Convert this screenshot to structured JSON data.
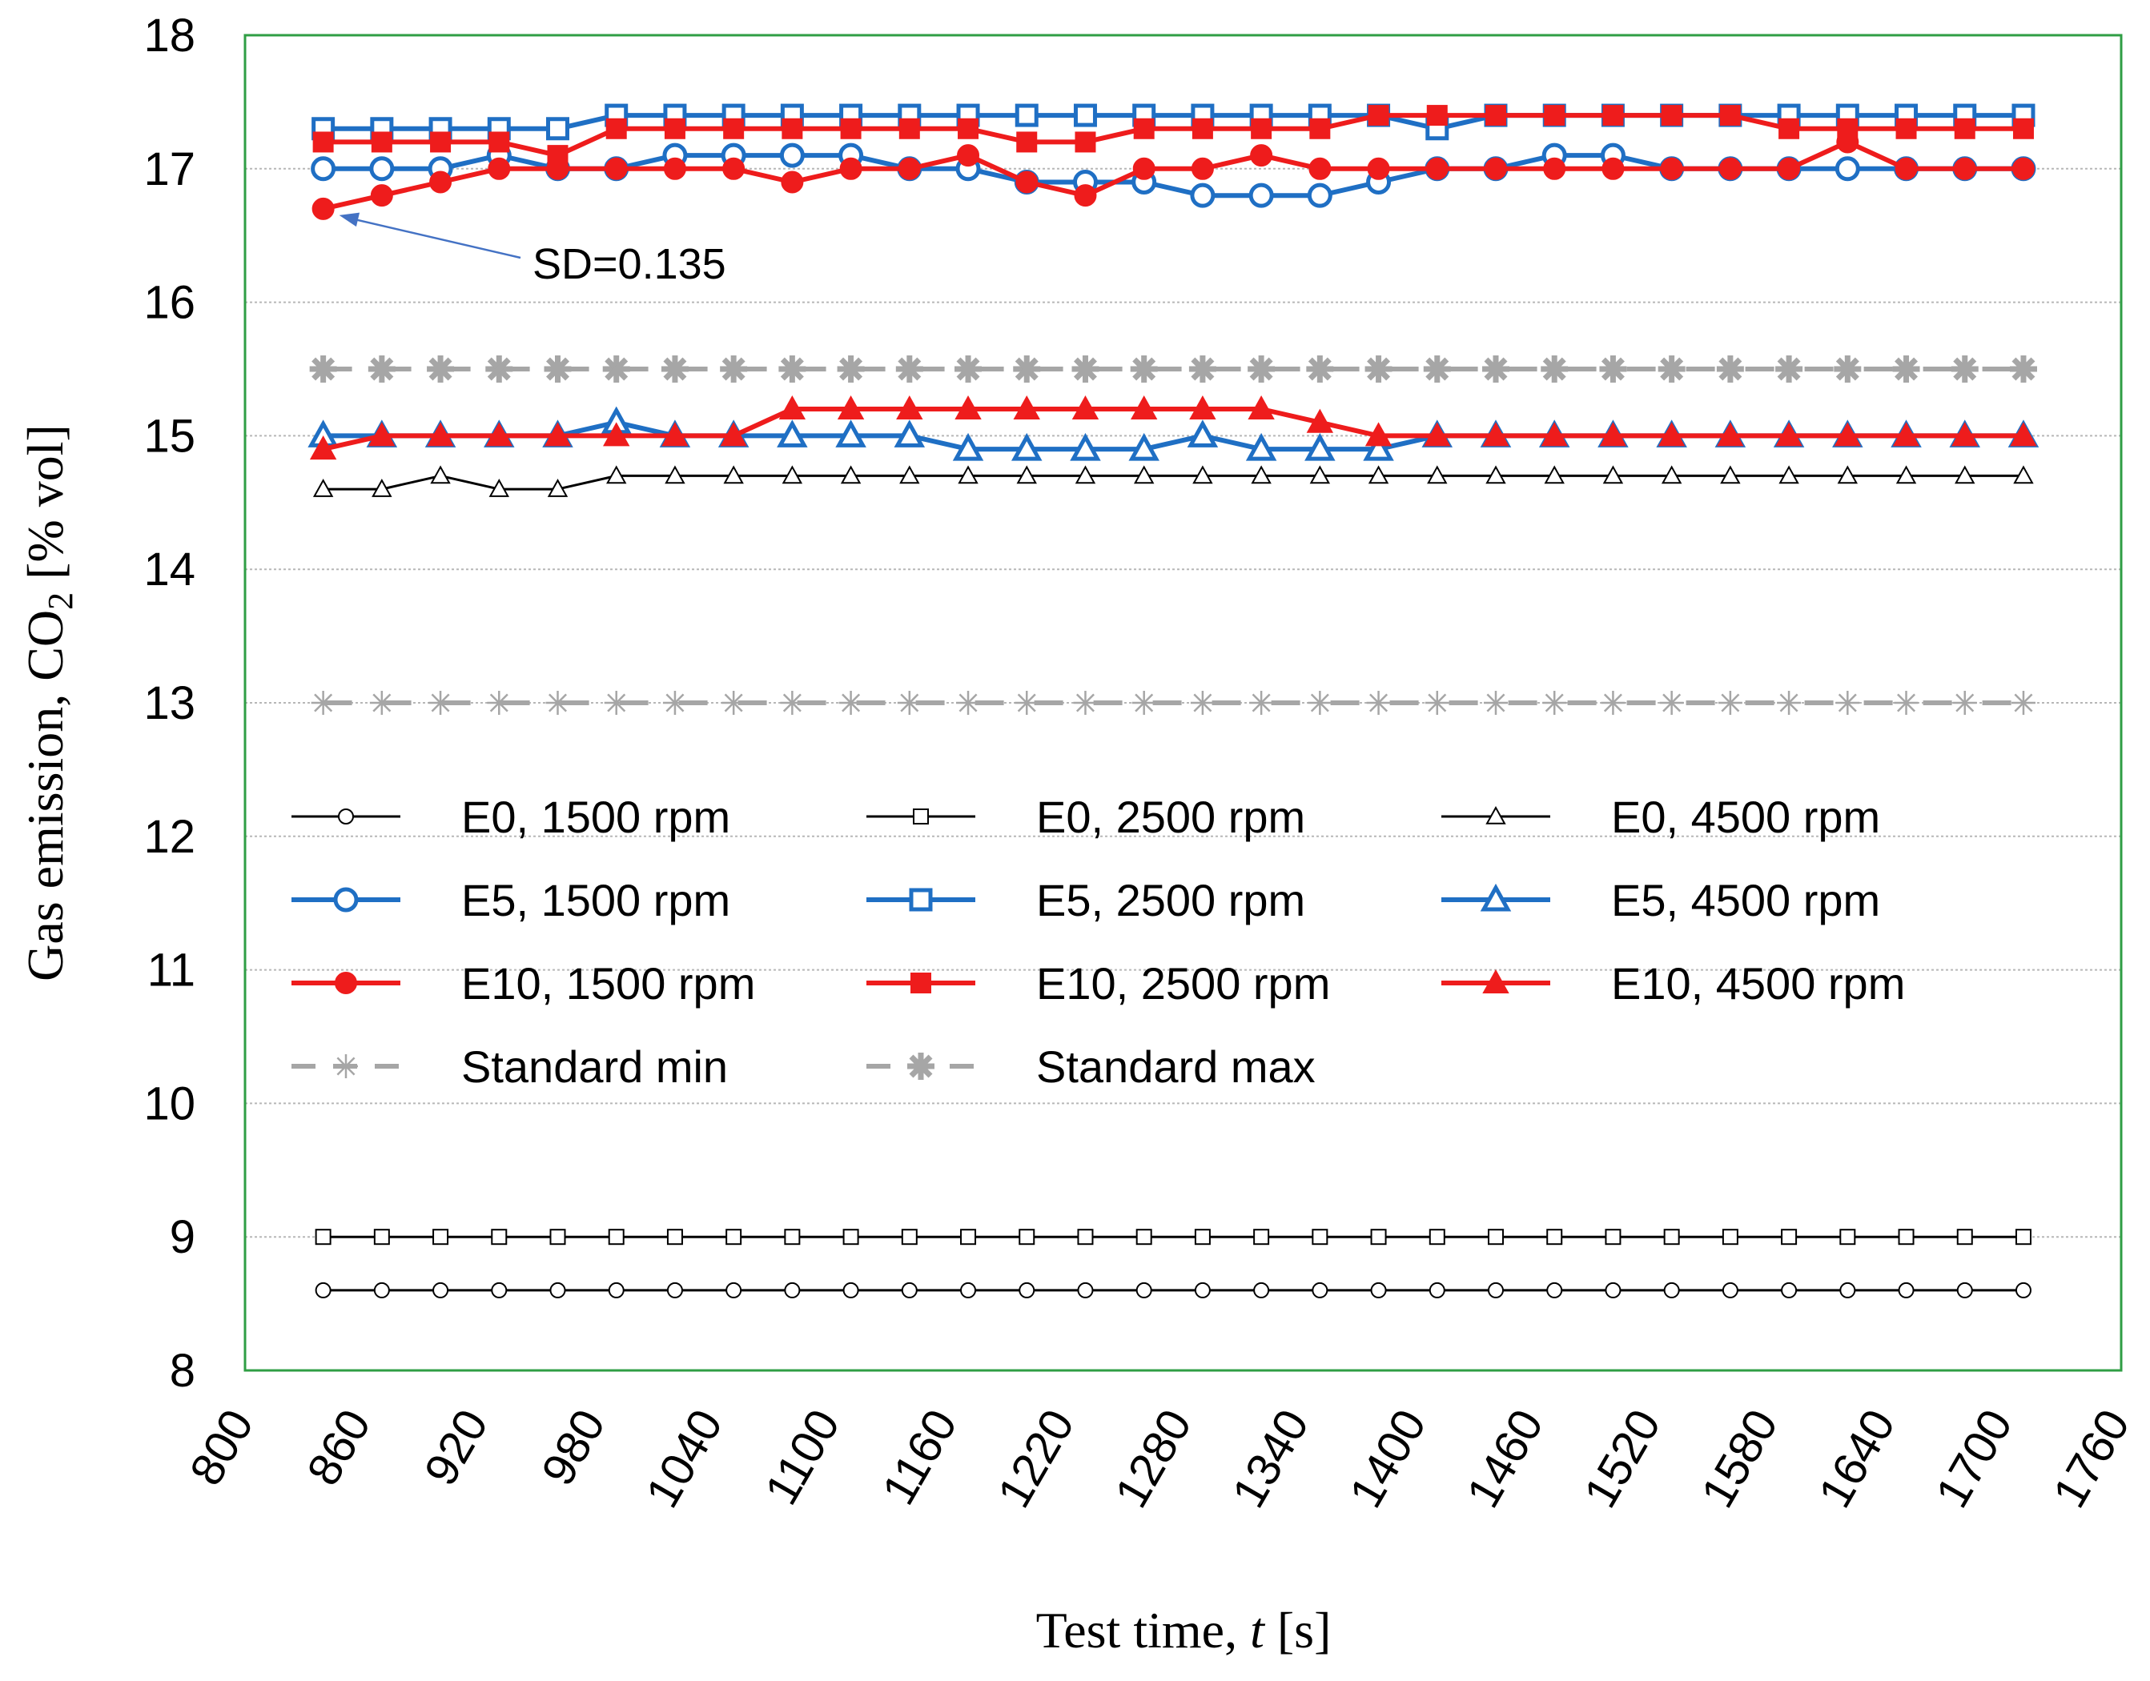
{
  "chart_data": {
    "type": "line",
    "title": "",
    "xlabel_prefix": "Test time, ",
    "xlabel_var": "t",
    "xlabel_suffix": " [s]",
    "ylabel_prefix": "Gas emission, CO",
    "ylabel_sub": "2",
    "ylabel_suffix": " [% vol]",
    "xlim": [
      800,
      1760
    ],
    "ylim": [
      8,
      18
    ],
    "xticks": [
      800,
      860,
      920,
      980,
      1040,
      1100,
      1160,
      1220,
      1280,
      1340,
      1400,
      1460,
      1520,
      1580,
      1640,
      1700,
      1760
    ],
    "yticks": [
      8,
      9,
      10,
      11,
      12,
      13,
      14,
      15,
      16,
      17,
      18
    ],
    "x": [
      840,
      870,
      900,
      930,
      960,
      990,
      1020,
      1050,
      1080,
      1110,
      1140,
      1170,
      1200,
      1230,
      1260,
      1290,
      1320,
      1350,
      1380,
      1410,
      1440,
      1470,
      1500,
      1530,
      1560,
      1590,
      1620,
      1650,
      1680,
      1710
    ],
    "grid": true,
    "annotation": {
      "text": "SD=0.135",
      "target_x": 840,
      "target_y": 16.7,
      "color": "#4472c4"
    },
    "series": [
      {
        "name": "E0, 1500 rpm",
        "color": "#000000",
        "marker": "circle-open",
        "width": 3,
        "values": [
          8.6,
          8.6,
          8.6,
          8.6,
          8.6,
          8.6,
          8.6,
          8.6,
          8.6,
          8.6,
          8.6,
          8.6,
          8.6,
          8.6,
          8.6,
          8.6,
          8.6,
          8.6,
          8.6,
          8.6,
          8.6,
          8.6,
          8.6,
          8.6,
          8.6,
          8.6,
          8.6,
          8.6,
          8.6,
          8.6
        ]
      },
      {
        "name": "E0, 2500 rpm",
        "color": "#000000",
        "marker": "square-open",
        "width": 3,
        "values": [
          9,
          9,
          9,
          9,
          9,
          9,
          9,
          9,
          9,
          9,
          9,
          9,
          9,
          9,
          9,
          9,
          9,
          9,
          9,
          9,
          9,
          9,
          9,
          9,
          9,
          9,
          9,
          9,
          9,
          9
        ]
      },
      {
        "name": "E0, 4500 rpm",
        "color": "#000000",
        "marker": "triangle-open",
        "width": 3,
        "values": [
          14.6,
          14.6,
          14.7,
          14.6,
          14.6,
          14.7,
          14.7,
          14.7,
          14.7,
          14.7,
          14.7,
          14.7,
          14.7,
          14.7,
          14.7,
          14.7,
          14.7,
          14.7,
          14.7,
          14.7,
          14.7,
          14.7,
          14.7,
          14.7,
          14.7,
          14.7,
          14.7,
          14.7,
          14.7,
          14.7
        ]
      },
      {
        "name": "E5, 1500 rpm",
        "color": "#1f6fc4",
        "marker": "circle-open-bold",
        "width": 6,
        "values": [
          17,
          17,
          17,
          17.1,
          17,
          17,
          17.1,
          17.1,
          17.1,
          17.1,
          17,
          17,
          16.9,
          16.9,
          16.9,
          16.8,
          16.8,
          16.8,
          16.9,
          17,
          17,
          17.1,
          17.1,
          17,
          17,
          17,
          17,
          17,
          17,
          17
        ]
      },
      {
        "name": "E5, 2500 rpm",
        "color": "#1f6fc4",
        "marker": "square-open-bold",
        "width": 6,
        "values": [
          17.3,
          17.3,
          17.3,
          17.3,
          17.3,
          17.4,
          17.4,
          17.4,
          17.4,
          17.4,
          17.4,
          17.4,
          17.4,
          17.4,
          17.4,
          17.4,
          17.4,
          17.4,
          17.4,
          17.3,
          17.4,
          17.4,
          17.4,
          17.4,
          17.4,
          17.4,
          17.4,
          17.4,
          17.4,
          17.4
        ]
      },
      {
        "name": "E5, 4500 rpm",
        "color": "#1f6fc4",
        "marker": "triangle-open-bold",
        "width": 6,
        "values": [
          15,
          15,
          15,
          15,
          15,
          15.1,
          15,
          15,
          15,
          15,
          15,
          14.9,
          14.9,
          14.9,
          14.9,
          15,
          14.9,
          14.9,
          14.9,
          15,
          15,
          15,
          15,
          15,
          15,
          15,
          15,
          15,
          15,
          15
        ]
      },
      {
        "name": "E10, 1500 rpm",
        "color": "#ee1c1c",
        "marker": "circle-filled",
        "width": 6,
        "values": [
          16.7,
          16.8,
          16.9,
          17,
          17,
          17,
          17,
          17,
          16.9,
          17,
          17,
          17.1,
          16.9,
          16.8,
          17,
          17,
          17.1,
          17,
          17,
          17,
          17,
          17,
          17,
          17,
          17,
          17,
          17.2,
          17,
          17,
          17
        ]
      },
      {
        "name": "E10, 2500 rpm",
        "color": "#ee1c1c",
        "marker": "square-filled",
        "width": 6,
        "values": [
          17.2,
          17.2,
          17.2,
          17.2,
          17.1,
          17.3,
          17.3,
          17.3,
          17.3,
          17.3,
          17.3,
          17.3,
          17.2,
          17.2,
          17.3,
          17.3,
          17.3,
          17.3,
          17.4,
          17.4,
          17.4,
          17.4,
          17.4,
          17.4,
          17.4,
          17.3,
          17.3,
          17.3,
          17.3,
          17.3
        ]
      },
      {
        "name": "E10, 4500 rpm",
        "color": "#ee1c1c",
        "marker": "triangle-filled",
        "width": 6,
        "values": [
          14.9,
          15,
          15,
          15,
          15,
          15,
          15,
          15,
          15.2,
          15.2,
          15.2,
          15.2,
          15.2,
          15.2,
          15.2,
          15.2,
          15.2,
          15.1,
          15,
          15,
          15,
          15,
          15,
          15,
          15,
          15,
          15,
          15,
          15,
          15
        ]
      },
      {
        "name": "Standard min",
        "color": "#a6a6a6",
        "marker": "star-thin",
        "width": 6,
        "dash": true,
        "values": [
          13,
          13,
          13,
          13,
          13,
          13,
          13,
          13,
          13,
          13,
          13,
          13,
          13,
          13,
          13,
          13,
          13,
          13,
          13,
          13,
          13,
          13,
          13,
          13,
          13,
          13,
          13,
          13,
          13,
          13
        ]
      },
      {
        "name": "Standard max",
        "color": "#a6a6a6",
        "marker": "star-bold",
        "width": 6,
        "dash": true,
        "values": [
          15.5,
          15.5,
          15.5,
          15.5,
          15.5,
          15.5,
          15.5,
          15.5,
          15.5,
          15.5,
          15.5,
          15.5,
          15.5,
          15.5,
          15.5,
          15.5,
          15.5,
          15.5,
          15.5,
          15.5,
          15.5,
          15.5,
          15.5,
          15.5,
          15.5,
          15.5,
          15.5,
          15.5,
          15.5,
          15.5
        ]
      }
    ],
    "legend_placement": "inside-center-left"
  }
}
